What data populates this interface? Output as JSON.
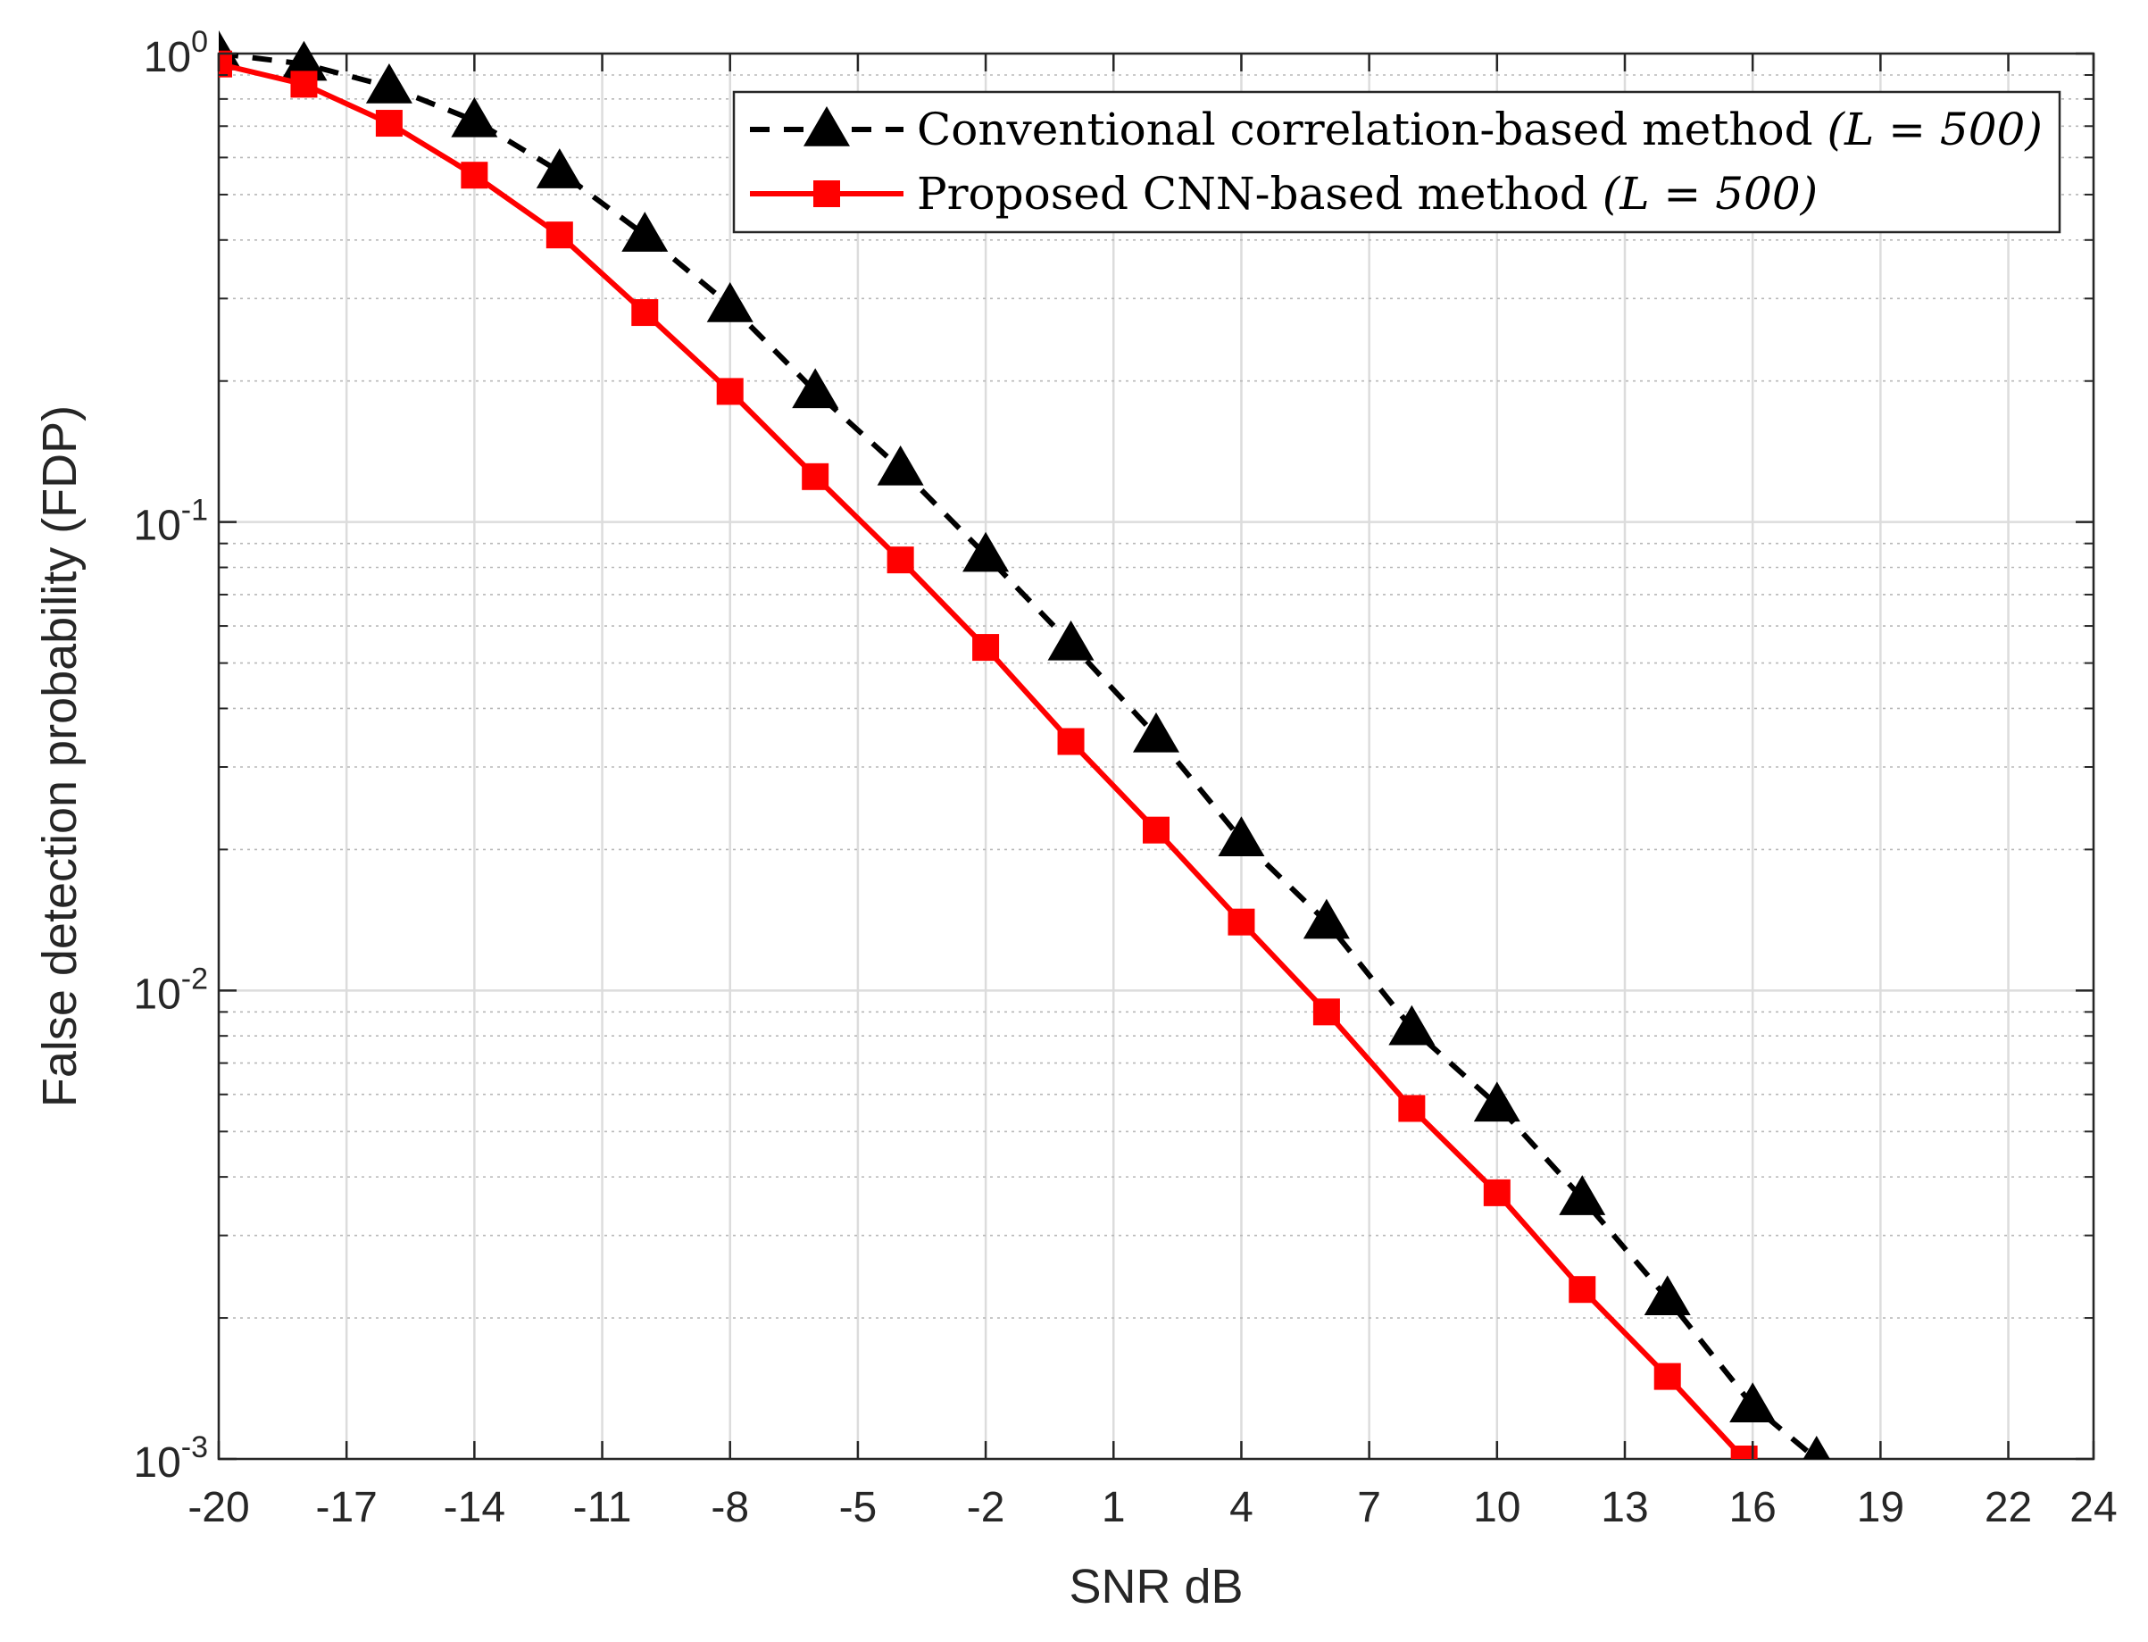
{
  "chart_data": {
    "type": "line",
    "xlabel": "SNR dB",
    "ylabel": "False detection probability (FDP)",
    "x_ticks": [
      "-20",
      "-17",
      "-14",
      "-11",
      "-8",
      "-5",
      "-2",
      "1",
      "4",
      "7",
      "10",
      "13",
      "16",
      "19",
      "22",
      "24"
    ],
    "x_tick_values": [
      -20,
      -17,
      -14,
      -11,
      -8,
      -5,
      -2,
      1,
      4,
      7,
      10,
      13,
      16,
      19,
      22,
      24
    ],
    "xlim": [
      -20,
      24
    ],
    "y_scale": "log",
    "ylim": [
      0.001,
      1
    ],
    "y_ticks": [
      {
        "value": 1,
        "base": "10",
        "exp": "0"
      },
      {
        "value": 0.1,
        "base": "10",
        "exp": "-1"
      },
      {
        "value": 0.01,
        "base": "10",
        "exp": "-2"
      },
      {
        "value": 0.001,
        "base": "10",
        "exp": "-3"
      }
    ],
    "grid": true,
    "minor_grid": true,
    "legend_position": "top-right",
    "series": [
      {
        "name": "Conventional correlation-based method",
        "name_math": "(L = 500)",
        "color": "#000000",
        "line_style": "dashed",
        "marker": "triangle",
        "x": [
          -20,
          -18,
          -16,
          -14,
          -12,
          -10,
          -8,
          -6,
          -4,
          -2,
          0,
          2,
          4,
          6,
          8,
          10,
          12,
          14,
          16,
          17.5
        ],
        "y": [
          1.0,
          0.95,
          0.85,
          0.72,
          0.56,
          0.41,
          0.29,
          0.19,
          0.13,
          0.085,
          0.055,
          0.035,
          0.021,
          0.014,
          0.0083,
          0.0057,
          0.0036,
          0.0022,
          0.0013,
          0.001
        ]
      },
      {
        "name": "Proposed CNN-based method",
        "name_math": "(L = 500)",
        "color": "#ff0000",
        "line_style": "solid",
        "marker": "square",
        "x": [
          -20,
          -18,
          -16,
          -14,
          -12,
          -10,
          -8,
          -6,
          -4,
          -2,
          0,
          2,
          4,
          6,
          8,
          10,
          12,
          14,
          15.8
        ],
        "y": [
          0.95,
          0.86,
          0.71,
          0.55,
          0.41,
          0.28,
          0.19,
          0.125,
          0.083,
          0.054,
          0.034,
          0.022,
          0.014,
          0.009,
          0.0056,
          0.0037,
          0.0023,
          0.0015,
          0.001
        ]
      }
    ]
  }
}
